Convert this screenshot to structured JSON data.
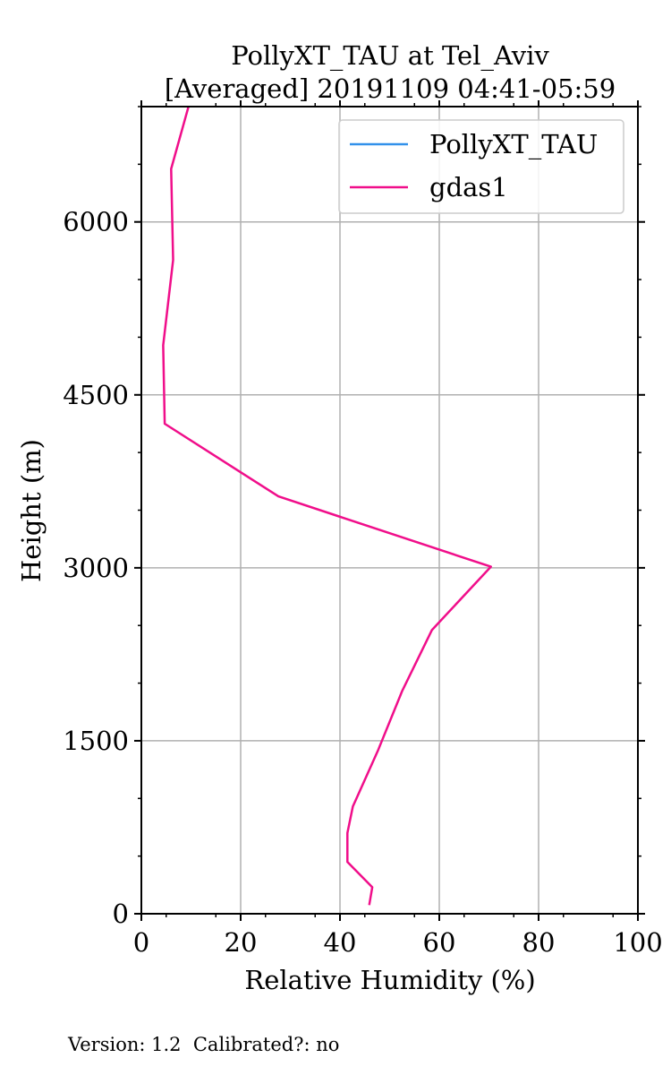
{
  "chart_data": {
    "type": "line",
    "title": [
      "PollyXT_TAU at Tel_Aviv",
      "[Averaged] 20191109 04:41-05:59"
    ],
    "xlabel": "Relative Humidity (%)",
    "ylabel": "Height (m)",
    "xlim": [
      0,
      100
    ],
    "ylim": [
      0,
      7000
    ],
    "xticks": [
      0,
      20,
      40,
      60,
      80,
      100
    ],
    "yticks": [
      0,
      1500,
      3000,
      4500,
      6000
    ],
    "grid": true,
    "legend": {
      "position": "top-right",
      "entries": [
        {
          "name": "PollyXT_TAU",
          "color": "#3291ea"
        },
        {
          "name": "gdas1",
          "color": "#f00e8a"
        }
      ]
    },
    "series": [
      {
        "name": "PollyXT_TAU",
        "color": "#3291ea",
        "points": []
      },
      {
        "name": "gdas1",
        "color": "#f00e8a",
        "points": [
          [
            45.9,
            75
          ],
          [
            46.5,
            230
          ],
          [
            41.5,
            450
          ],
          [
            41.5,
            700
          ],
          [
            42.6,
            930
          ],
          [
            47.7,
            1420
          ],
          [
            52.5,
            1930
          ],
          [
            58.5,
            2460
          ],
          [
            70.4,
            3010
          ],
          [
            27.6,
            3620
          ],
          [
            4.7,
            4250
          ],
          [
            4.4,
            4930
          ],
          [
            6.4,
            5670
          ],
          [
            6.0,
            6460
          ],
          [
            9.5,
            7000
          ]
        ]
      }
    ]
  },
  "footer": {
    "text": "Version: 1.2  Calibrated?: no"
  }
}
